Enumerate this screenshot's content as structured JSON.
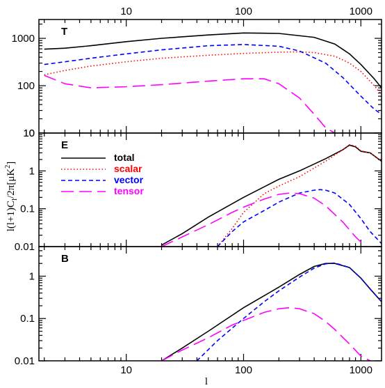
{
  "chart_data": [
    {
      "type": "line",
      "panel_label": "T",
      "xscale": "log",
      "yscale": "log",
      "xlim": [
        1.8,
        1500
      ],
      "ylim": [
        10,
        2500
      ],
      "series": [
        {
          "name": "total",
          "color": "#000000",
          "dash": "solid",
          "x": [
            2,
            3,
            5,
            10,
            20,
            50,
            100,
            200,
            400,
            600,
            800,
            1000,
            1300,
            1500
          ],
          "y": [
            590,
            620,
            700,
            850,
            1000,
            1180,
            1300,
            1270,
            1050,
            760,
            470,
            280,
            140,
            90
          ]
        },
        {
          "name": "scalar",
          "color": "#ff0000",
          "dash": "dotted",
          "x": [
            2,
            3,
            5,
            10,
            20,
            50,
            100,
            200,
            300,
            400,
            600,
            800,
            1000,
            1300,
            1500
          ],
          "y": [
            170,
            210,
            260,
            320,
            380,
            440,
            480,
            510,
            520,
            500,
            420,
            300,
            200,
            100,
            65
          ]
        },
        {
          "name": "vector",
          "color": "#0000ff",
          "dash": "dashed",
          "x": [
            2,
            3,
            5,
            10,
            20,
            50,
            100,
            200,
            300,
            500,
            700,
            1000,
            1300,
            1500
          ],
          "y": [
            280,
            320,
            380,
            470,
            570,
            700,
            740,
            680,
            540,
            300,
            150,
            60,
            32,
            25
          ]
        },
        {
          "name": "tensor",
          "color": "#ff00ff",
          "dash": "longdash",
          "x": [
            2,
            3,
            5,
            10,
            20,
            50,
            100,
            150,
            200,
            300,
            400,
            500,
            600
          ],
          "y": [
            165,
            110,
            90,
            95,
            105,
            125,
            140,
            140,
            110,
            55,
            25,
            13,
            10
          ]
        }
      ],
      "yticks": [
        10,
        100,
        1000
      ]
    },
    {
      "type": "line",
      "panel_label": "E",
      "xscale": "log",
      "yscale": "log",
      "xlim": [
        1.8,
        1500
      ],
      "ylim": [
        0.01,
        10
      ],
      "series": [
        {
          "name": "total",
          "color": "#000000",
          "dash": "solid",
          "x": [
            20,
            30,
            50,
            100,
            200,
            300,
            500,
            700,
            800,
            900,
            1000,
            1200,
            1500
          ],
          "y": [
            0.011,
            0.022,
            0.06,
            0.2,
            0.6,
            1.0,
            2.1,
            3.6,
            4.8,
            4.3,
            3.3,
            3.0,
            1.8
          ]
        },
        {
          "name": "scalar",
          "color": "#ff0000",
          "dash": "dotted",
          "x": [
            60,
            80,
            100,
            150,
            200,
            300,
            500,
            700,
            800,
            900,
            1000,
            1200,
            1500
          ],
          "y": [
            0.01,
            0.03,
            0.08,
            0.25,
            0.4,
            0.7,
            1.8,
            3.6,
            4.9,
            4.5,
            3.4,
            3.0,
            1.8
          ]
        },
        {
          "name": "vector",
          "color": "#0000ff",
          "dash": "dashed",
          "x": [
            60,
            80,
            100,
            150,
            200,
            300,
            400,
            450,
            500,
            600,
            800,
            1000,
            1200,
            1500
          ],
          "y": [
            0.01,
            0.025,
            0.045,
            0.09,
            0.15,
            0.26,
            0.31,
            0.32,
            0.31,
            0.26,
            0.13,
            0.055,
            0.025,
            0.012
          ]
        },
        {
          "name": "tensor",
          "color": "#ff00ff",
          "dash": "longdash",
          "x": [
            20,
            30,
            50,
            80,
            100,
            150,
            200,
            250,
            300,
            400,
            500,
            700,
            900,
            1100
          ],
          "y": [
            0.01,
            0.018,
            0.038,
            0.08,
            0.11,
            0.18,
            0.24,
            0.26,
            0.25,
            0.19,
            0.12,
            0.045,
            0.018,
            0.01
          ]
        }
      ],
      "yticks": [
        0.01,
        0.1,
        1,
        10
      ]
    },
    {
      "type": "line",
      "panel_label": "B",
      "xscale": "log",
      "yscale": "log",
      "xlim": [
        1.8,
        1500
      ],
      "ylim": [
        0.01,
        5
      ],
      "series": [
        {
          "name": "total",
          "color": "#000000",
          "dash": "solid",
          "x": [
            20,
            30,
            50,
            100,
            200,
            300,
            400,
            500,
            600,
            800,
            1000,
            1200,
            1500
          ],
          "y": [
            0.01,
            0.02,
            0.05,
            0.18,
            0.55,
            1.1,
            1.7,
            2.0,
            2.0,
            1.6,
            0.9,
            0.5,
            0.25
          ]
        },
        {
          "name": "vector",
          "color": "#0000ff",
          "dash": "dashed",
          "x": [
            40,
            60,
            100,
            150,
            200,
            300,
            400,
            500,
            600,
            800,
            1000,
            1200,
            1500
          ],
          "y": [
            0.01,
            0.03,
            0.1,
            0.25,
            0.45,
            0.95,
            1.55,
            1.95,
            2.05,
            1.6,
            0.9,
            0.5,
            0.25
          ]
        },
        {
          "name": "tensor",
          "color": "#ff00ff",
          "dash": "longdash",
          "x": [
            20,
            30,
            50,
            80,
            100,
            150,
            200,
            250,
            300,
            400,
            500,
            600,
            800,
            1000,
            1200
          ],
          "y": [
            0.01,
            0.018,
            0.035,
            0.07,
            0.09,
            0.14,
            0.17,
            0.18,
            0.17,
            0.13,
            0.085,
            0.055,
            0.025,
            0.013,
            0.01
          ]
        }
      ],
      "yticks": [
        0.01,
        0.1,
        1
      ]
    }
  ],
  "xticks": [
    10,
    100,
    1000
  ],
  "xticks_top": [
    10,
    100,
    1000
  ],
  "xlabel": "l",
  "ylabel": "l(l+1)C_l/2π[μK²]",
  "legend": {
    "panel": "E",
    "entries": [
      {
        "label": "total",
        "color": "#000000",
        "dash": "solid"
      },
      {
        "label": "scalar",
        "color": "#ff0000",
        "dash": "dotted"
      },
      {
        "label": "vector",
        "color": "#0000ff",
        "dash": "dashed"
      },
      {
        "label": "tensor",
        "color": "#ff00ff",
        "dash": "longdash"
      }
    ]
  }
}
